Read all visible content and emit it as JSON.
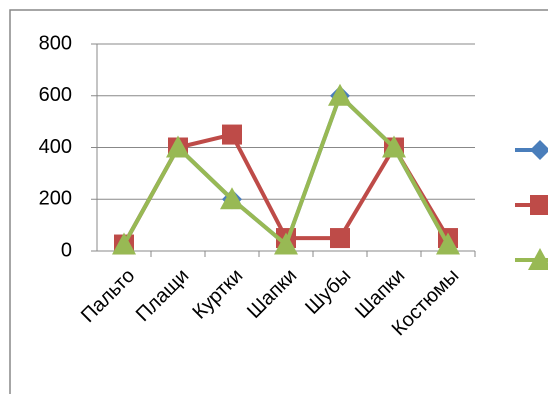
{
  "chart_data": {
    "type": "line",
    "categories": [
      "Пальто",
      "Плащи",
      "Куртки",
      "Шапки",
      "Шубы",
      "Шапки",
      "Костюмы"
    ],
    "series": [
      {
        "color": "#4a7ebb",
        "values": [
          25,
          400,
          200,
          25,
          600,
          400,
          25
        ]
      },
      {
        "color": "#be4b48",
        "values": [
          25,
          400,
          450,
          50,
          50,
          400,
          50
        ]
      },
      {
        "color": "#98b954",
        "values": [
          25,
          400,
          200,
          25,
          600,
          400,
          25
        ]
      }
    ],
    "ylim": [
      0,
      800
    ],
    "yticks": [
      0,
      200,
      400,
      600,
      800
    ],
    "grid": true,
    "legend": "right"
  }
}
